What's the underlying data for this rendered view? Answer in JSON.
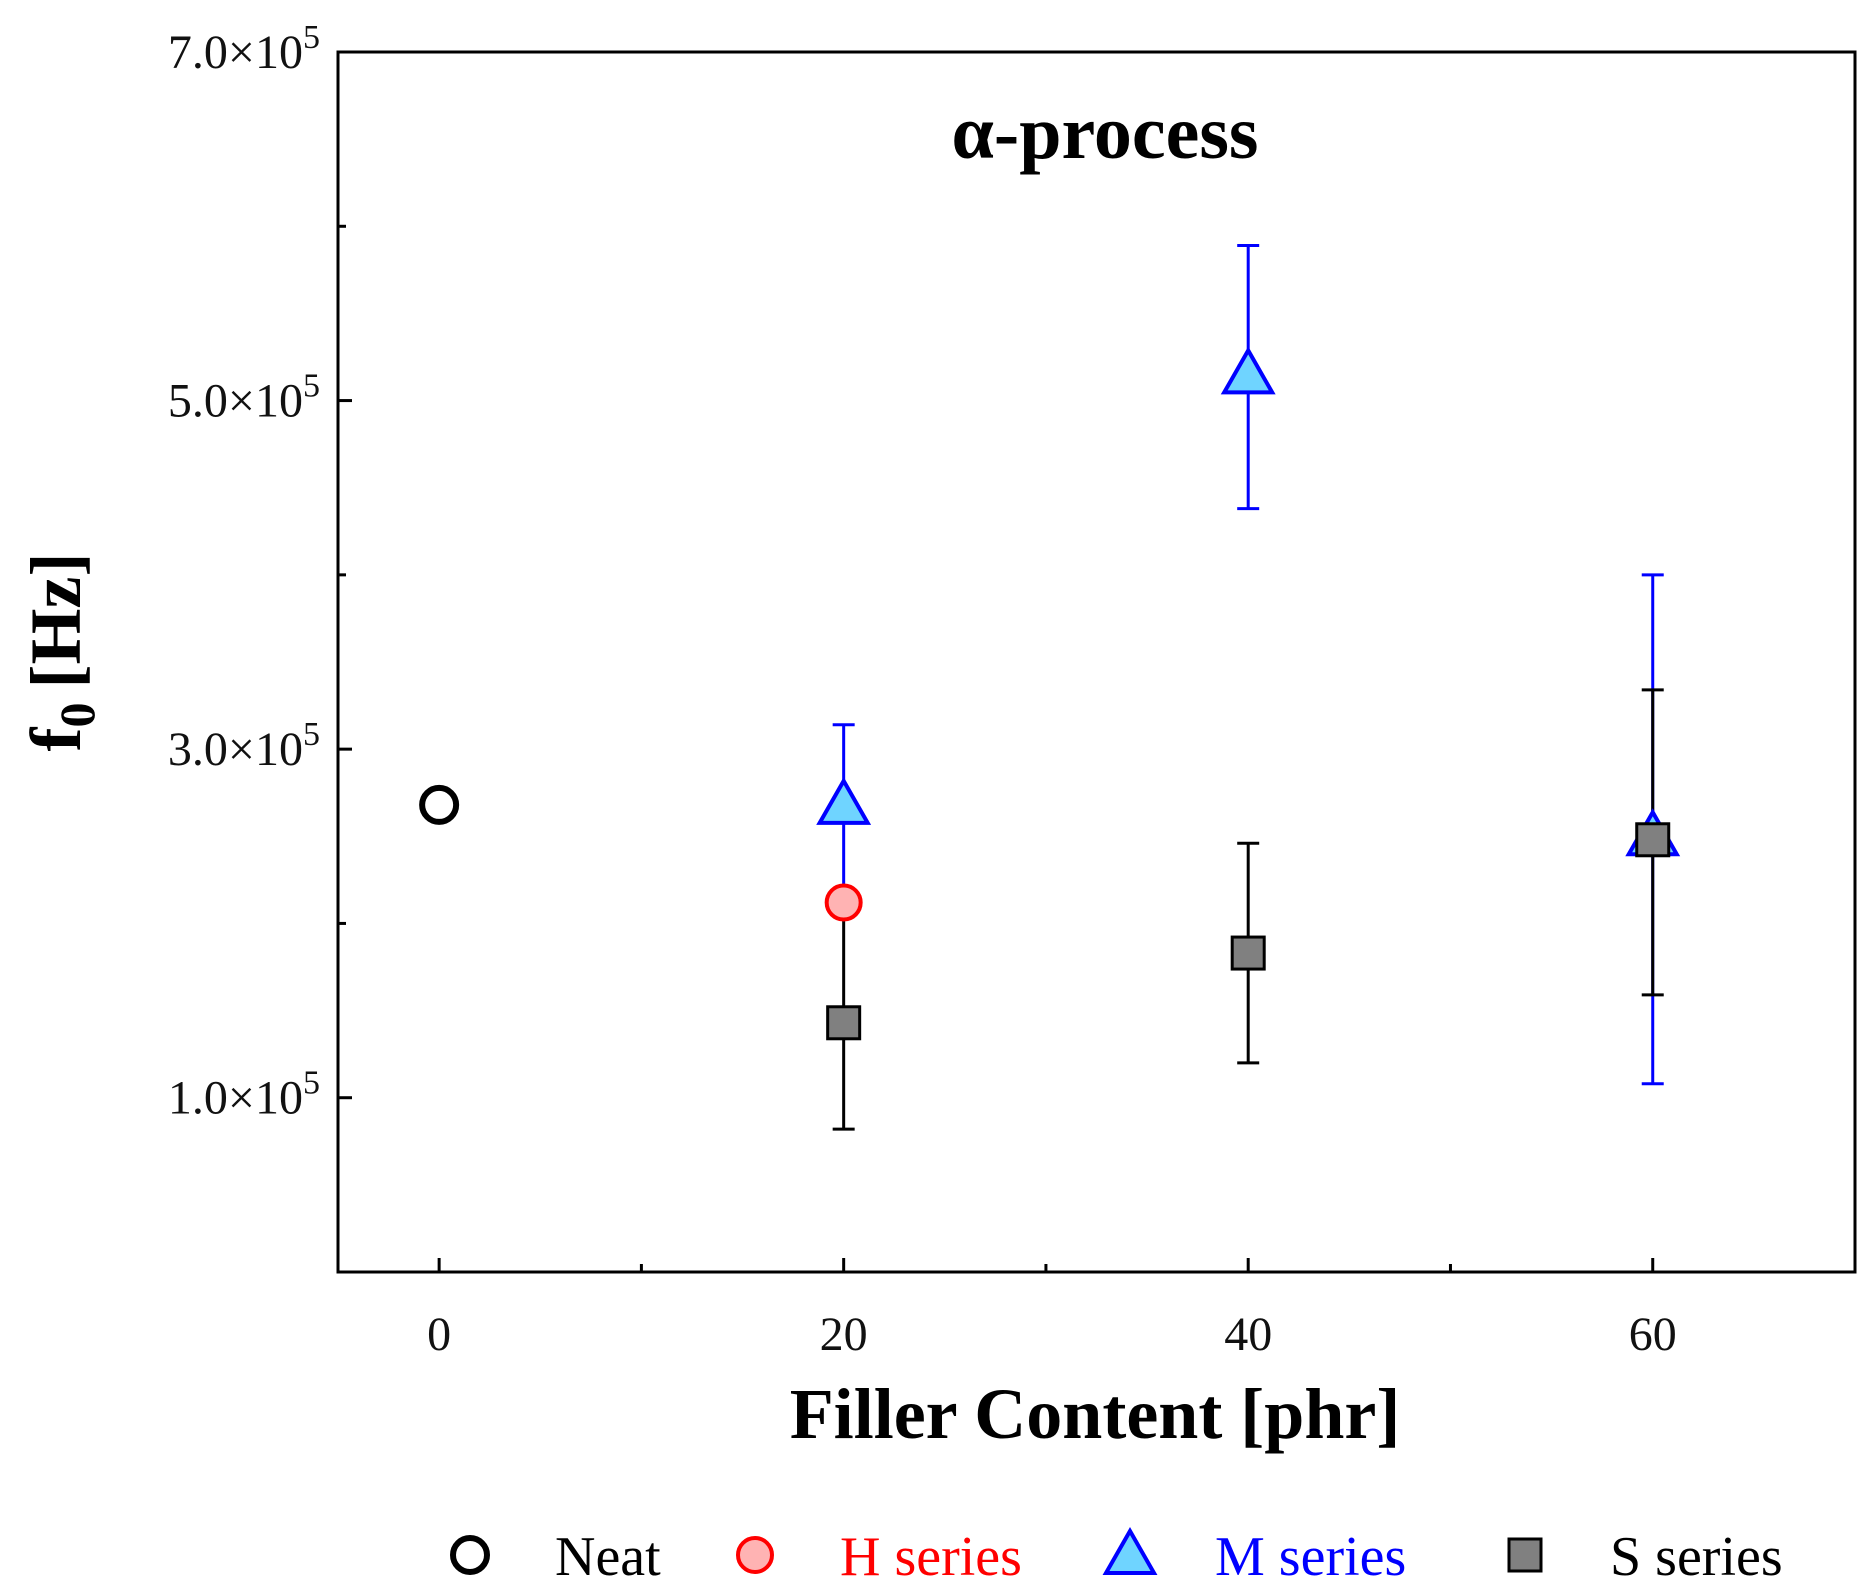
{
  "chart_data": {
    "type": "scatter",
    "title": "α-process",
    "xlabel": "Filler Content [phr]",
    "ylabel_main": "f",
    "ylabel_sub": "0",
    "ylabel_unit": "[Hz]",
    "xlim": [
      -5,
      70
    ],
    "ylim": [
      0,
      700000
    ],
    "x_ticks": [
      0,
      20,
      40,
      60
    ],
    "x_minor_ticks": [
      10,
      30,
      50
    ],
    "y_ticks": [
      {
        "value": 100000,
        "mantissa": "1.0",
        "base": "×10",
        "exp": "5"
      },
      {
        "value": 300000,
        "mantissa": "3.0",
        "base": "×10",
        "exp": "5"
      },
      {
        "value": 500000,
        "mantissa": "5.0",
        "base": "×10",
        "exp": "5"
      },
      {
        "value": 700000,
        "mantissa": "7.0",
        "base": "×10",
        "exp": "5"
      }
    ],
    "y_minor_ticks": [
      200000,
      400000,
      600000
    ],
    "series": [
      {
        "name": "Neat",
        "marker": "circle",
        "stroke": "#000000",
        "fill": "#ffffff",
        "text_color": "#000000",
        "points": [
          {
            "x": 0,
            "y": 268000,
            "err_low": null,
            "err_high": null
          }
        ]
      },
      {
        "name": "H series",
        "marker": "circle",
        "stroke": "#ff0000",
        "fill": "#ffb3b3",
        "text_color": "#ff0000",
        "points": [
          {
            "x": 20,
            "y": 212000,
            "err_low": null,
            "err_high": null
          }
        ]
      },
      {
        "name": "M series",
        "marker": "triangle",
        "stroke": "#0000ff",
        "fill": "#6fd4ff",
        "text_color": "#0000ff",
        "points": [
          {
            "x": 20,
            "y": 268000,
            "err_low": 215000,
            "err_high": 314000
          },
          {
            "x": 40,
            "y": 515000,
            "err_low": 438000,
            "err_high": 589000
          },
          {
            "x": 60,
            "y": 250000,
            "err_low": 108000,
            "err_high": 400000
          }
        ]
      },
      {
        "name": "S series",
        "marker": "square",
        "stroke": "#000000",
        "fill": "#808080",
        "text_color": "#000000",
        "points": [
          {
            "x": 20,
            "y": 143000,
            "err_low": 82000,
            "err_high": 212000
          },
          {
            "x": 40,
            "y": 183000,
            "err_low": 120000,
            "err_high": 246000
          },
          {
            "x": 60,
            "y": 248000,
            "err_low": 159000,
            "err_high": 334000
          }
        ]
      }
    ],
    "legend_position": "bottom"
  }
}
